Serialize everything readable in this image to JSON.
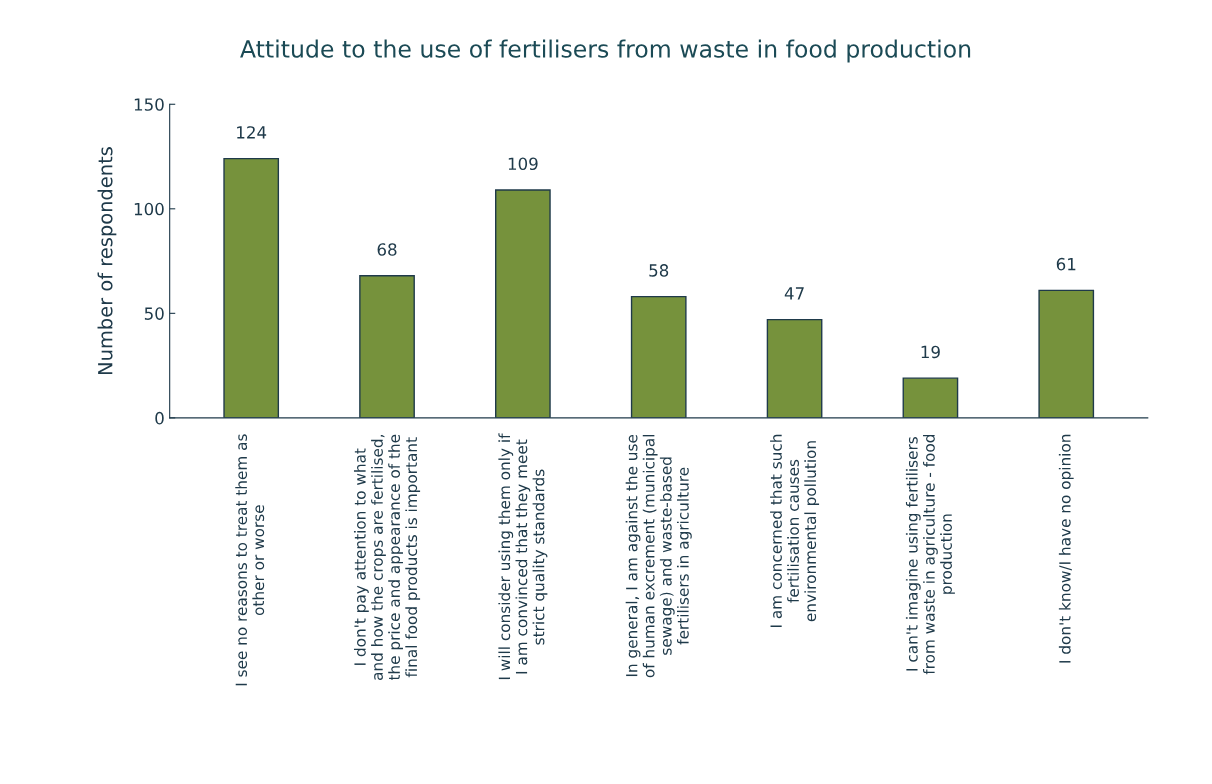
{
  "chart_data": {
    "type": "bar",
    "title": "Attitude to the use of fertilisers from waste in food production",
    "ylabel": "Number of respondents",
    "categories": [
      "I see no reasons to treat them as\nother or worse",
      "I don't pay attention to what\nand how the crops are fertilised,\nthe price and appearance of the\nfinal food products is important",
      "I will consider using them only if\nI am convinced that they meet\nstrict quality standards",
      "In general, I am against the use\nof human excrement (municipal\nsewage) and waste-based\nfertilisers in agriculture",
      "I am concerned that such\nfertilisation causes\nenvironmental pollution",
      "I can't imagine using fertilisers\nfrom waste in agriculture - food\nproduction",
      "I don't know/I have no opinion"
    ],
    "values": [
      124,
      68,
      109,
      58,
      47,
      19,
      61
    ],
    "color": "#76923c",
    "ylim": [
      0,
      150
    ],
    "yticks": [
      0,
      50,
      100,
      150
    ],
    "grid": false,
    "legend": false,
    "data_labels": true
  }
}
